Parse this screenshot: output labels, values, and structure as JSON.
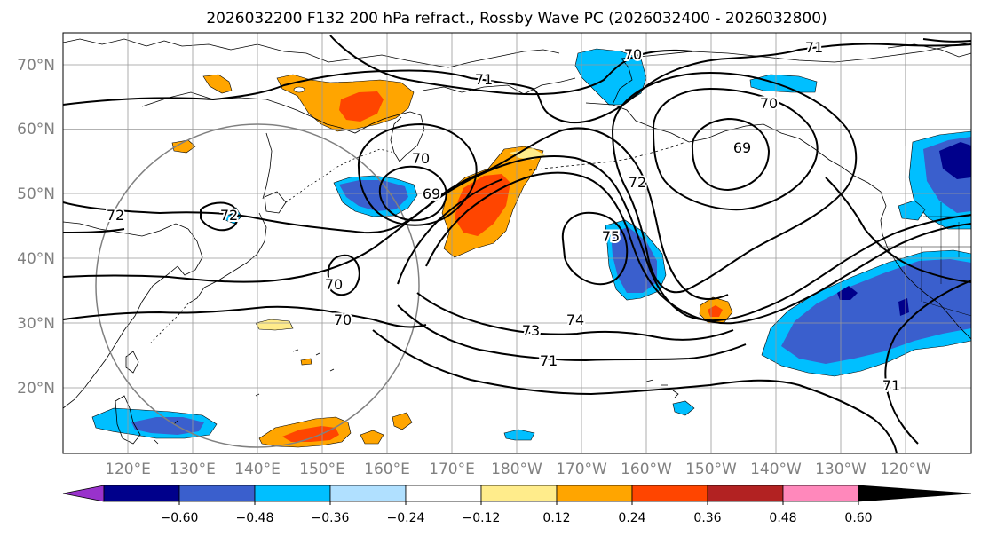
{
  "title": "2026032200 F132 200 hPa refract., Rossby Wave PC (2026032400 - 2026032800)",
  "latitude_labels": [
    "70°N",
    "60°N",
    "50°N",
    "40°N",
    "30°N",
    "20°N"
  ],
  "longitude_labels": [
    "120°E",
    "130°E",
    "140°E",
    "150°E",
    "160°E",
    "170°E",
    "180°W",
    "170°W",
    "160°W",
    "150°W",
    "140°W",
    "130°W",
    "120°W"
  ],
  "colorbar": {
    "colors": [
      "#9932cc",
      "#00008b",
      "#3a5fcd",
      "#00bfff",
      "#b0e0ff",
      "#ffffff",
      "#ffec8b",
      "#ffa500",
      "#ff4500",
      "#b22222",
      "#ff88bb"
    ],
    "tick_labels": [
      "−0.60",
      "−0.48",
      "−0.36",
      "−0.24",
      "−0.12",
      "0.12",
      "0.24",
      "0.36",
      "0.48",
      "0.60"
    ]
  },
  "contour_labels": [
    "71",
    "70",
    "71",
    "70",
    "69",
    "72",
    "70",
    "69",
    "72",
    "75",
    "70",
    "70",
    "74",
    "73",
    "71",
    "71",
    "72"
  ],
  "shading_colors": {
    "orange": "#ffa500",
    "light_yellow": "#ffec8b",
    "red_orange": "#ff4500",
    "sky_blue": "#00bfff",
    "royal_blue": "#3a5fcd",
    "navy": "#00008b",
    "light_blue": "#b0e0ff"
  },
  "chart_data": {
    "type": "map",
    "title": "2026032200 F132 200 hPa refract., Rossby Wave PC (2026032400 - 2026032800)",
    "extent": {
      "lon_min": 110,
      "lon_max": 250,
      "lat_min": 10,
      "lat_max": 75
    },
    "contour_levels": [
      69,
      70,
      71,
      72,
      73,
      74,
      75
    ],
    "colorbar_bounds": [
      -0.6,
      -0.48,
      -0.36,
      -0.24,
      -0.12,
      0.12,
      0.24,
      0.36,
      0.48,
      0.6
    ],
    "colorbar_extend": "both"
  }
}
